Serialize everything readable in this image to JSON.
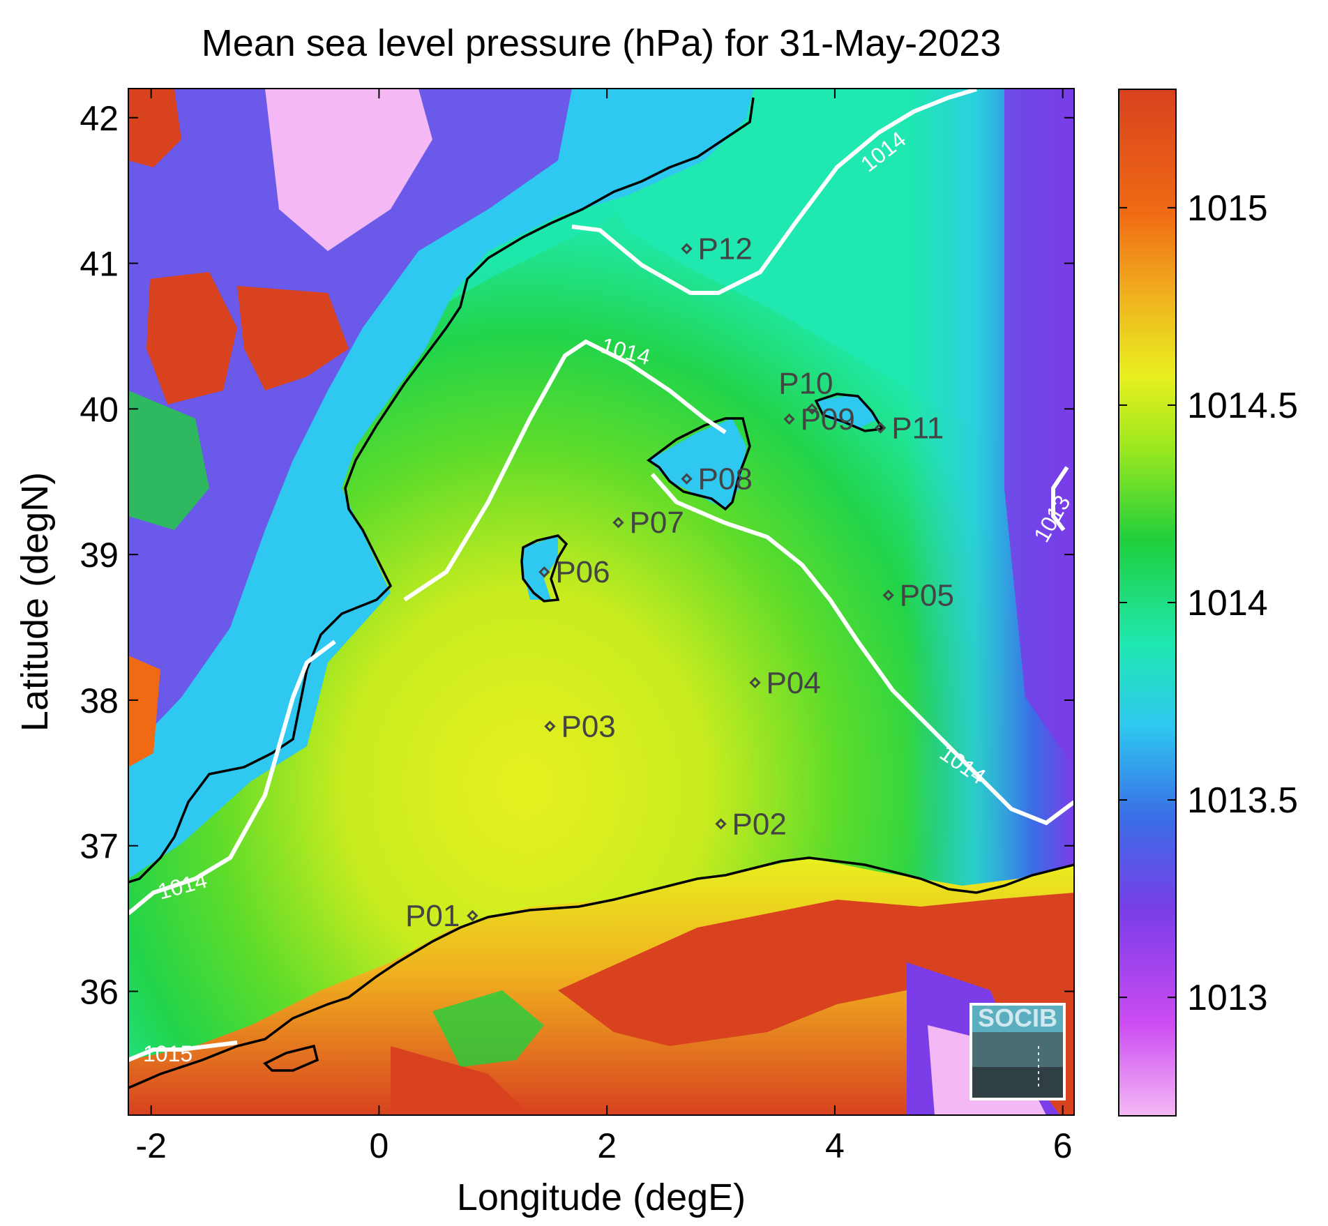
{
  "title": "Mean sea level pressure (hPa) for 31-May-2023",
  "xlabel": "Longitude (degE)",
  "ylabel": "Latitude (degN)",
  "logo_text": "SOCIB",
  "chart_data": {
    "type": "heatmap",
    "title": "Mean sea level pressure (hPa) for 31-May-2023",
    "xlabel": "Longitude (degE)",
    "ylabel": "Latitude (degN)",
    "xlim": [
      -2.2,
      6.1
    ],
    "ylim": [
      35.15,
      42.2
    ],
    "xticks": [
      -2,
      0,
      2,
      4,
      6
    ],
    "yticks": [
      36,
      37,
      38,
      39,
      40,
      41,
      42
    ],
    "colorbar": {
      "range": [
        1012.7,
        1015.3
      ],
      "ticks": [
        1013,
        1013.5,
        1014,
        1014.5,
        1015
      ],
      "tick_labels": [
        "1013",
        "1013.5",
        "1014",
        "1014.5",
        "1015"
      ],
      "colormap": [
        "#f4b9f4",
        "#cc4cf2",
        "#7a3de8",
        "#3a6de6",
        "#2ec8f0",
        "#1fe8b0",
        "#1fcf3c",
        "#9be81f",
        "#e8f01f",
        "#f0b01f",
        "#f06a14",
        "#d8421f"
      ]
    },
    "contour_labels": [
      "1014",
      "1014",
      "1014",
      "1014",
      "1015",
      "1013"
    ],
    "stations": [
      {
        "name": "P01",
        "lon": 0.82,
        "lat": 36.52
      },
      {
        "name": "P02",
        "lon": 3.0,
        "lat": 37.15
      },
      {
        "name": "P03",
        "lon": 1.5,
        "lat": 37.82
      },
      {
        "name": "P04",
        "lon": 3.3,
        "lat": 38.12
      },
      {
        "name": "P05",
        "lon": 4.47,
        "lat": 38.72
      },
      {
        "name": "P06",
        "lon": 1.45,
        "lat": 38.88
      },
      {
        "name": "P07",
        "lon": 2.1,
        "lat": 39.22
      },
      {
        "name": "P08",
        "lon": 2.7,
        "lat": 39.52
      },
      {
        "name": "P09",
        "lon": 3.6,
        "lat": 39.93
      },
      {
        "name": "P10",
        "lon": 3.8,
        "lat": 40.0
      },
      {
        "name": "P11",
        "lon": 4.4,
        "lat": 39.87
      },
      {
        "name": "P12",
        "lon": 2.7,
        "lat": 41.1
      }
    ]
  }
}
